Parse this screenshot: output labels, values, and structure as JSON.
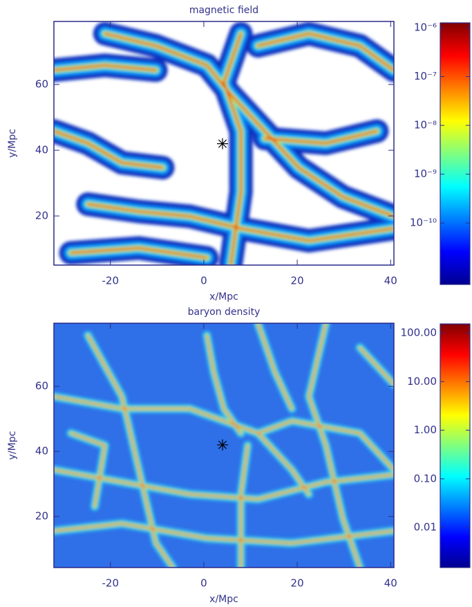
{
  "chart_data": [
    {
      "type": "heatmap",
      "title": "magnetic field",
      "xlabel": "x/Mpc",
      "ylabel": "y/Mpc",
      "xlim": [
        -32.1,
        40.7
      ],
      "xticks": [
        -20,
        0,
        20,
        40
      ],
      "ylim": [
        5.05,
        79.2
      ],
      "yticks": [
        20,
        40,
        60
      ],
      "background": "white",
      "marker": {
        "x": 4,
        "y": 42
      },
      "colorbar": {
        "scale": "log",
        "lim": [
          5.5e-12,
          1.26e-06
        ],
        "ticks": [
          {
            "value": 1e-06,
            "label": "10⁻⁶"
          },
          {
            "value": 1e-07,
            "label": "10⁻⁷"
          },
          {
            "value": 1e-08,
            "label": "10⁻⁸"
          },
          {
            "value": 1e-09,
            "label": "10⁻⁹"
          },
          {
            "value": 1e-10,
            "label": "10⁻¹⁰"
          }
        ]
      }
    },
    {
      "type": "heatmap",
      "title": "baryon density",
      "xlabel": "x/Mpc",
      "ylabel": "y/Mpc",
      "xlim": [
        -32.1,
        40.7
      ],
      "xticks": [
        -20,
        0,
        20,
        40
      ],
      "ylim": [
        4.3,
        79.4
      ],
      "yticks": [
        20,
        40,
        60
      ],
      "background": "blue",
      "marker": {
        "x": 4,
        "y": 42
      },
      "colorbar": {
        "scale": "log",
        "lim": [
          0.0015,
          153
        ],
        "ticks": [
          {
            "value": 100,
            "label": "100.00"
          },
          {
            "value": 10,
            "label": "10.00"
          },
          {
            "value": 1,
            "label": "1.00"
          },
          {
            "value": 0.1,
            "label": "0.10"
          },
          {
            "value": 0.01,
            "label": "0.01"
          }
        ]
      }
    }
  ]
}
